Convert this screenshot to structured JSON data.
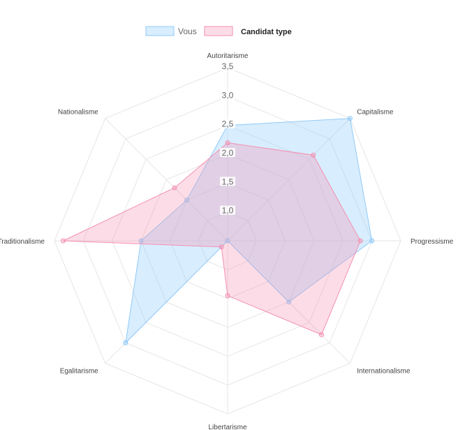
{
  "chart_data": {
    "type": "radar",
    "axes": [
      "Autoritarisme",
      "Capitalisme",
      "Progressisme",
      "Internationalisme",
      "Libertarisme",
      "Egalitarisme",
      "Traditionalisme",
      "Nationalisme"
    ],
    "rlim": [
      0.5,
      3.5
    ],
    "ticks": [
      "1,0",
      "1,5",
      "2,0",
      "2,5",
      "3,0",
      "3,5"
    ],
    "tick_values": [
      1.0,
      1.5,
      2.0,
      2.5,
      3.0,
      3.5
    ],
    "grid": true,
    "legend_position": "top",
    "series": [
      {
        "name": "Vous",
        "values": [
          2.5,
          3.5,
          3.0,
          2.0,
          0.5,
          3.0,
          2.0,
          1.5
        ],
        "color": "#90caf9",
        "fill": "rgba(144,202,249,0.35)"
      },
      {
        "name": "Candidat type",
        "values": [
          2.2,
          2.6,
          2.8,
          2.8,
          1.45,
          0.65,
          3.35,
          1.8
        ],
        "color": "#f48fb1",
        "fill": "rgba(244,143,177,0.30)"
      }
    ]
  }
}
